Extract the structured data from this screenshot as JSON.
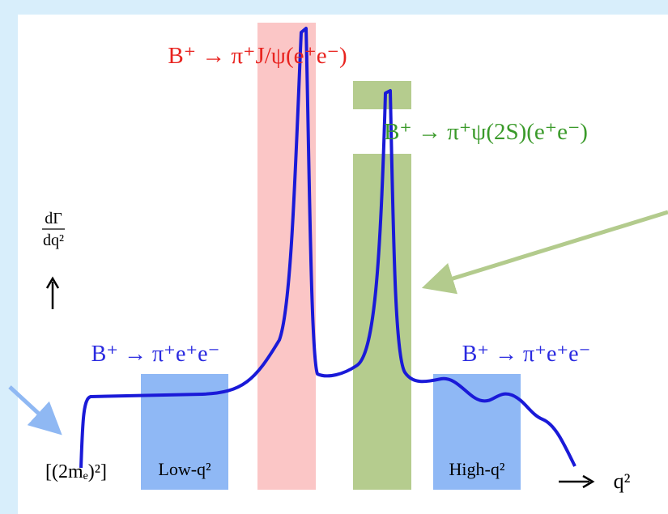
{
  "labels": {
    "jpsi": "B⁺ → π⁺J/ψ(e⁺e⁻)",
    "psi2s": "B⁺ → π⁺ψ(2S)(e⁺e⁻)",
    "low_mode": "B⁺ → π⁺e⁺e⁻",
    "high_mode": "B⁺ → π⁺e⁺e⁻",
    "y_num": "dΓ",
    "y_den": "dq²",
    "threshold": "[(2mₑ)²]",
    "low_bin": "Low-q²",
    "high_bin": "High-q²",
    "x_axis": "q²"
  }
}
